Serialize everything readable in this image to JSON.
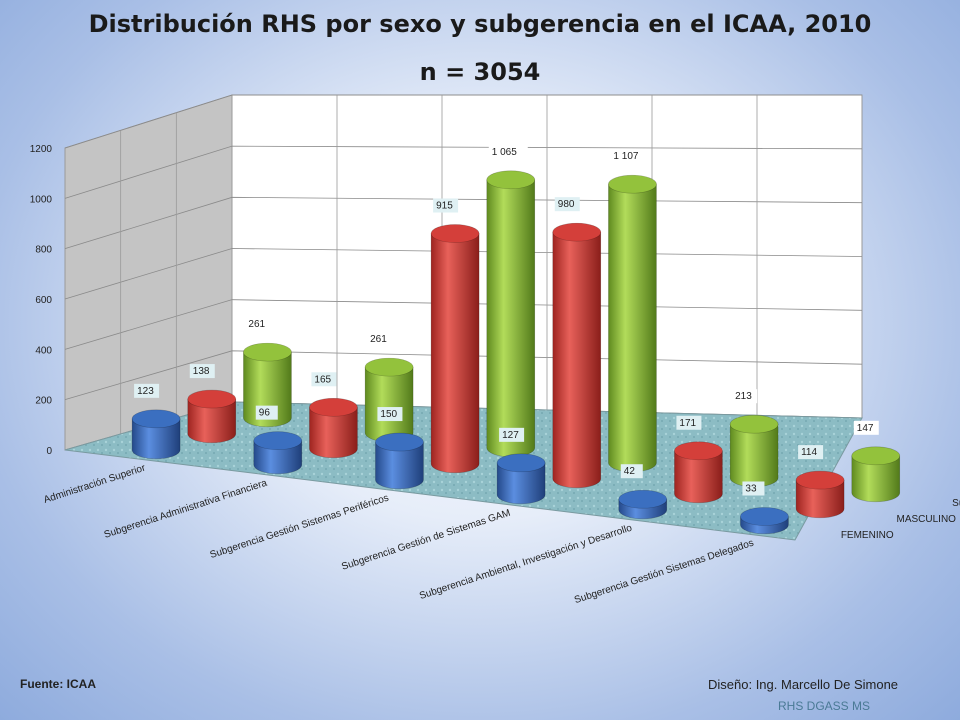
{
  "title": "Distribución RHS por sexo y subgerencia en el ICAA, 2010",
  "subtitle": "n  = 3054",
  "footer": {
    "source": "Fuente:  ICAA",
    "design": "Diseño: Ing. Marcello De Simone",
    "org": "RHS DGASS MS"
  },
  "colors": {
    "FEMENINO": "#3b6fc0",
    "MASCULINO": "#d43f3a",
    "Subtotales": "#93c23c",
    "floor": "#8fbfc6",
    "wall": "#ffffff"
  },
  "chart_data": {
    "type": "bar",
    "style": "3d-cylinder",
    "title": "Distribución RHS por sexo y subgerencia en el ICAA, 2010",
    "subtitle": "n  = 3054",
    "categories": [
      "Administración Superior",
      "Subgerencia Administrativa Financiera",
      "Subgerencia Gestión Sistemas Periféricos",
      "Subgerencia Gestión de Sistemas GAM",
      "Subgerencia Ambiental, Investigación y Desarrollo",
      "Subgerencia Gestión Sistemas Delegados"
    ],
    "series": [
      {
        "name": "FEMENINO",
        "values": [
          123,
          96,
          150,
          127,
          42,
          33
        ],
        "labels": [
          "123",
          "96",
          "150",
          "127",
          "42",
          "33"
        ]
      },
      {
        "name": "MASCULINO",
        "values": [
          138,
          165,
          915,
          980,
          171,
          114
        ],
        "labels": [
          "138",
          "165",
          "915",
          "980",
          "171",
          "114"
        ]
      },
      {
        "name": "Subtotales",
        "values": [
          261,
          261,
          1065,
          1107,
          213,
          147
        ],
        "labels": [
          "261",
          "261",
          "1 065",
          "1 107",
          "213",
          "147"
        ]
      }
    ],
    "yticks": [
      "0",
      "200",
      "400",
      "600",
      "800",
      "1000",
      "1200"
    ],
    "ylim": [
      0,
      1200
    ],
    "grid": true,
    "legend": "series labels on depth axis"
  }
}
